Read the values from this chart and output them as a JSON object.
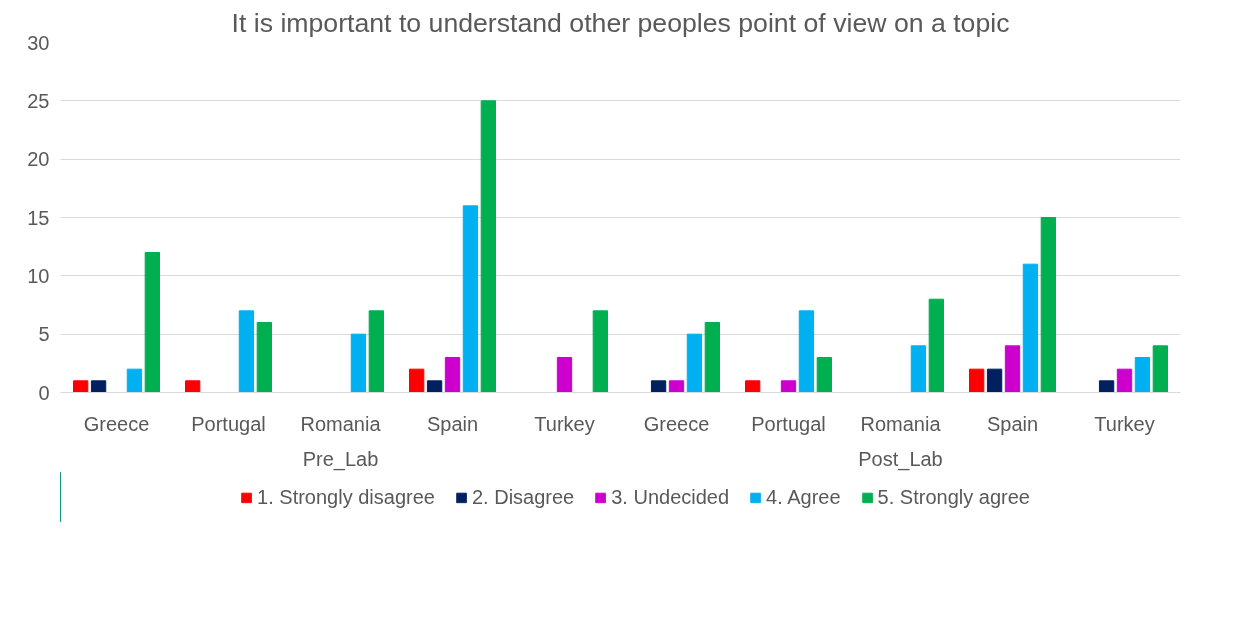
{
  "chart_data": {
    "type": "bar",
    "title": "It is important to understand other peoples point of view on a topic",
    "categories": [
      "Greece",
      "Portugal",
      "Romania",
      "Spain",
      "Turkey",
      "Greece",
      "Portugal",
      "Romania",
      "Spain",
      "Turkey"
    ],
    "annotations": [
      "Pre_Lab",
      "Post_Lab"
    ],
    "series": [
      {
        "name": "1. Strongly disagree",
        "color": "#ff0000",
        "values": [
          1,
          1,
          0,
          2,
          0,
          0,
          1,
          0,
          2,
          0
        ]
      },
      {
        "name": "2. Disagree",
        "color": "#002060",
        "values": [
          1,
          0,
          0,
          1,
          0,
          1,
          0,
          0,
          2,
          1
        ]
      },
      {
        "name": "3. Undecided",
        "color": "#cc00cc",
        "values": [
          0,
          0,
          0,
          3,
          3,
          1,
          1,
          0,
          4,
          2
        ]
      },
      {
        "name": "4. Agree",
        "color": "#00b0f0",
        "values": [
          2,
          7,
          5,
          16,
          0,
          5,
          7,
          4,
          11,
          3
        ]
      },
      {
        "name": "5. Strongly agree",
        "color": "#00b050",
        "values": [
          12,
          6,
          7,
          25,
          7,
          6,
          3,
          8,
          15,
          4
        ]
      }
    ],
    "ylim": [
      0,
      30
    ],
    "yticks": [
      0,
      5,
      10,
      15,
      20,
      25,
      30
    ],
    "grid": "y",
    "legend": "bottom"
  }
}
